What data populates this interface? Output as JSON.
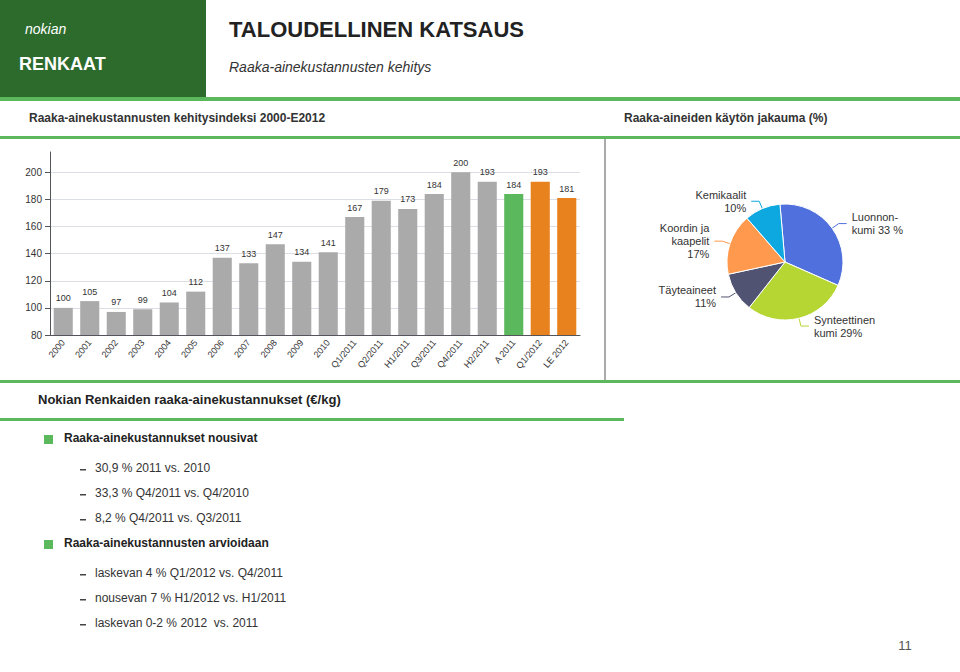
{
  "title": "TALOUDELLINEN KATSAUS",
  "subtitle": "Raaka-ainekustannusten kehitys",
  "annotations": [
    "nokian",
    "RENKAAT",
    "Nokian Renkaiden raaka-ainekustannukset (€/kg)",
    "Raaka-ainekustannukset nousivat",
    "30,9 % 2011 vs. 2010",
    "33,3 % Q4/2011 vs. Q4/2010",
    "8,2 % Q4/2011 vs. Q3/2011",
    "Raaka-ainekustannusten arvioidaan",
    "laskevan 4 % Q1/2012 vs. Q4/2011",
    "nousevan 7 % H1/2012 vs. H1/2011",
    "laskevan 0-2 % 2012  vs. 2011",
    "11"
  ],
  "chart_data": [
    {
      "type": "bar",
      "title": "Raaka-ainekustannusten kehitysindeksi 2000-E2012",
      "categories": [
        "2000",
        "2001",
        "2002",
        "2003",
        "2004",
        "2005",
        "2006",
        "2007",
        "2008",
        "2009",
        "2010",
        "Q1/2011",
        "Q2/2011",
        "H1/2011",
        "Q3/2011",
        "Q4/2011",
        "H2/2011",
        "A 2011",
        "Q1/2012",
        "LE 2012"
      ],
      "values": [
        100,
        105,
        97,
        99,
        104,
        112,
        137,
        133,
        147,
        134,
        141,
        167,
        179,
        173,
        184,
        200,
        193,
        184,
        193,
        181
      ],
      "colors": [
        "#aaaaaa",
        "#aaaaaa",
        "#aaaaaa",
        "#aaaaaa",
        "#aaaaaa",
        "#aaaaaa",
        "#aaaaaa",
        "#aaaaaa",
        "#aaaaaa",
        "#aaaaaa",
        "#aaaaaa",
        "#aaaaaa",
        "#aaaaaa",
        "#aaaaaa",
        "#aaaaaa",
        "#aaaaaa",
        "#aaaaaa",
        "#5cb85c",
        "#e8821e",
        "#e8821e"
      ],
      "ylim": [
        80,
        215
      ],
      "yticks": [
        80,
        100,
        120,
        140,
        160,
        180,
        200
      ],
      "grid": true,
      "data_labels": true
    },
    {
      "type": "pie",
      "title": "Raaka-aineiden käytön jakauma (%)",
      "values": [
        33,
        29,
        11,
        17,
        10
      ],
      "value_labels": [
        "Luonnon-\nkumi 33 %",
        "Synteettinen\nkumi 29%",
        "Täyteaineet\n11%",
        "Koordin ja\nkaapelit\n17%",
        "Kemikaalit\n10%"
      ],
      "data_labels": true
    }
  ]
}
